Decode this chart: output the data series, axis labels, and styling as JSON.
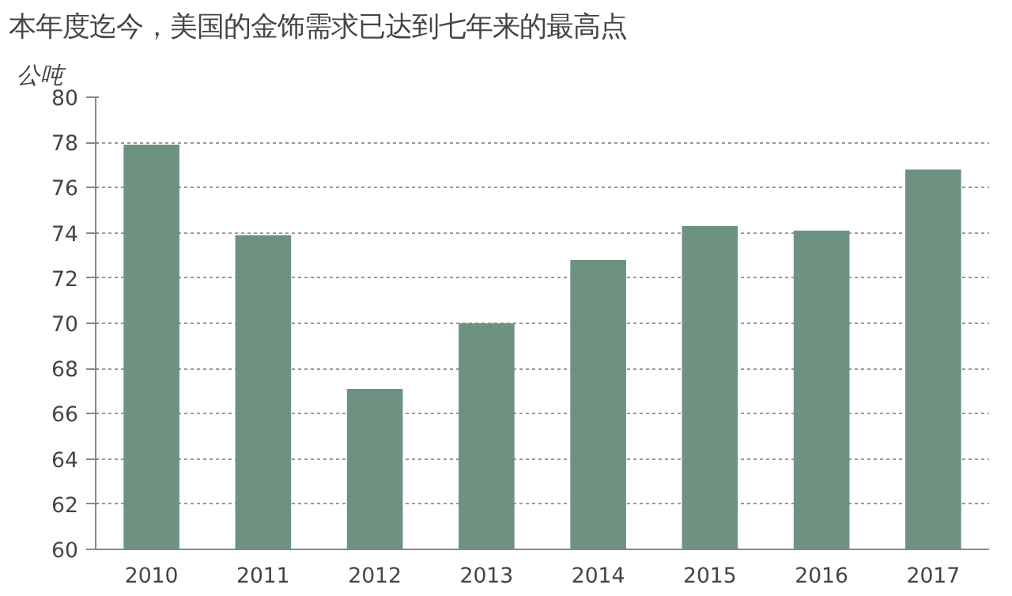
{
  "chart_data": {
    "type": "bar",
    "title": "本年度迄今，美国的金饰需求已达到七年来的最高点",
    "ylabel": "公吨",
    "categories": [
      "2010",
      "2011",
      "2012",
      "2013",
      "2014",
      "2015",
      "2016",
      "2017"
    ],
    "values": [
      77.9,
      73.9,
      67.1,
      70.0,
      72.8,
      74.3,
      74.1,
      76.8
    ],
    "color": "#6e9282",
    "ylim": [
      60,
      80
    ],
    "yticks": [
      60,
      62,
      64,
      66,
      68,
      70,
      72,
      74,
      76,
      78,
      80
    ],
    "grid": "y"
  }
}
